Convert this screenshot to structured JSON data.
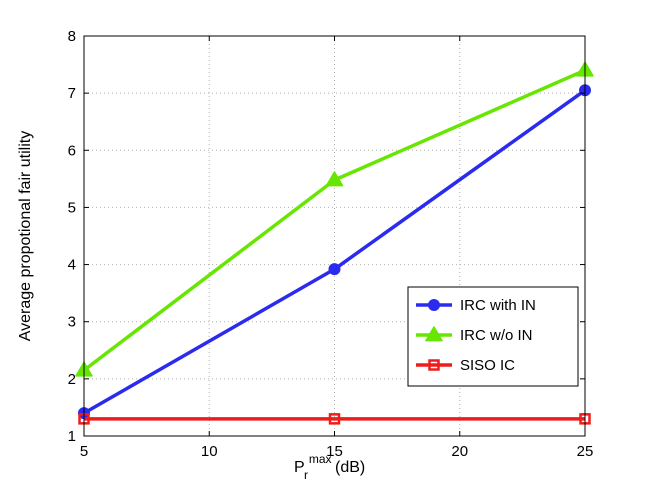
{
  "chart_data": {
    "type": "line",
    "title": "",
    "xlabel_main": "P",
    "xlabel_sub": "r",
    "xlabel_sup": "max",
    "xlabel_unit": "(dB)",
    "ylabel": "Average propotional fair utility",
    "xlim": [
      5,
      25
    ],
    "ylim": [
      1,
      8
    ],
    "xticks": [
      5,
      10,
      15,
      20,
      25
    ],
    "yticks": [
      1,
      2,
      3,
      4,
      5,
      6,
      7,
      8
    ],
    "grid": true,
    "legend_position": "lower-right",
    "x": [
      5,
      15,
      25
    ],
    "series": [
      {
        "name": "IRC with IN",
        "values": [
          1.4,
          3.92,
          7.05
        ],
        "color": "#2b2bf0",
        "marker": "circle"
      },
      {
        "name": "IRC w/o IN",
        "values": [
          2.15,
          5.48,
          7.4
        ],
        "color": "#66e600",
        "marker": "triangle"
      },
      {
        "name": "SISO IC",
        "values": [
          1.3,
          1.3,
          1.3
        ],
        "color": "#ef1c1c",
        "marker": "square"
      }
    ]
  }
}
